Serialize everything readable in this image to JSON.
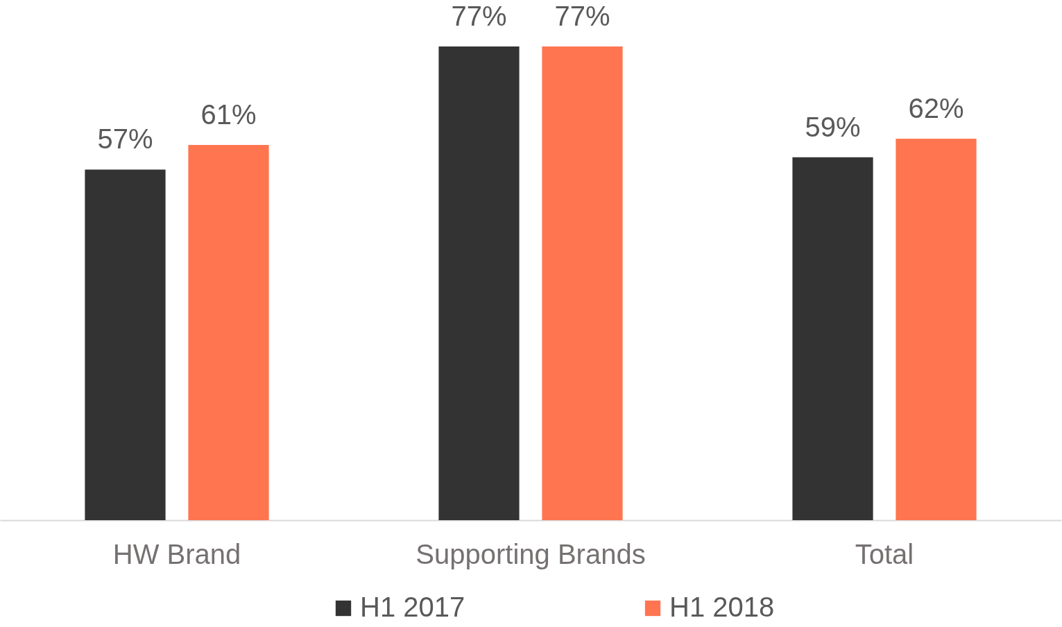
{
  "chart_data": {
    "type": "bar",
    "categories": [
      "HW Brand",
      "Supporting Brands",
      "Total"
    ],
    "series": [
      {
        "name": "H1 2017",
        "color": "#333333",
        "values": [
          57,
          77,
          59
        ],
        "value_labels": [
          "57%",
          "77%",
          "59%"
        ]
      },
      {
        "name": "H1 2018",
        "color": "#ff7550",
        "values": [
          61,
          77,
          62
        ],
        "value_labels": [
          "61%",
          "77%",
          "62%"
        ]
      }
    ],
    "legend": "bottom"
  }
}
